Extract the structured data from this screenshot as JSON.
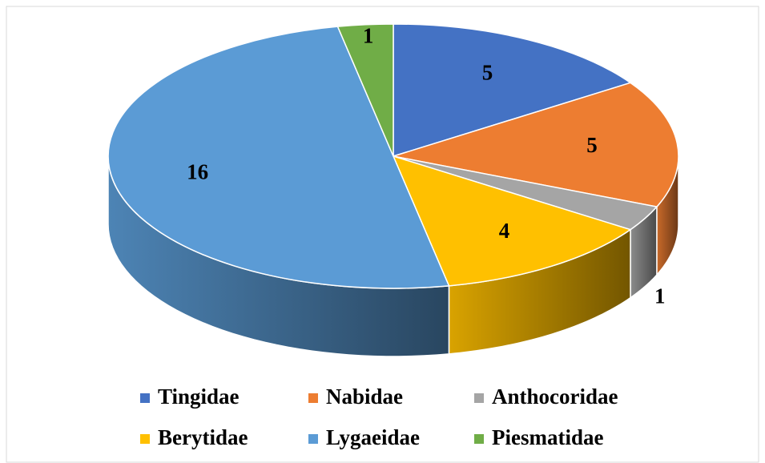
{
  "chart_data": {
    "type": "pie3d",
    "categories": [
      "Tingidae",
      "Nabidae",
      "Anthocoridae",
      "Berytidae",
      "Lygaeidae",
      "Piesmatidae"
    ],
    "values": [
      5,
      5,
      1,
      4,
      16,
      1
    ],
    "colors": [
      "#4472c4",
      "#ed7d31",
      "#a5a5a5",
      "#ffc000",
      "#5b9bd5",
      "#70ad47"
    ],
    "legend": "bottom"
  }
}
